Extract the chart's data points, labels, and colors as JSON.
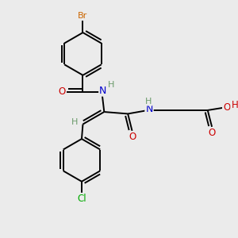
{
  "bg_color": "#ebebeb",
  "atom_colors": {
    "C": "#000000",
    "H": "#6a9a6a",
    "N": "#0000cc",
    "O": "#cc0000",
    "Br": "#cc6600",
    "Cl": "#00aa00"
  },
  "bond_color": "#000000",
  "bond_width": 1.4,
  "figsize": [
    3.0,
    3.0
  ],
  "dpi": 100,
  "xlim": [
    0,
    10
  ],
  "ylim": [
    0,
    10
  ]
}
